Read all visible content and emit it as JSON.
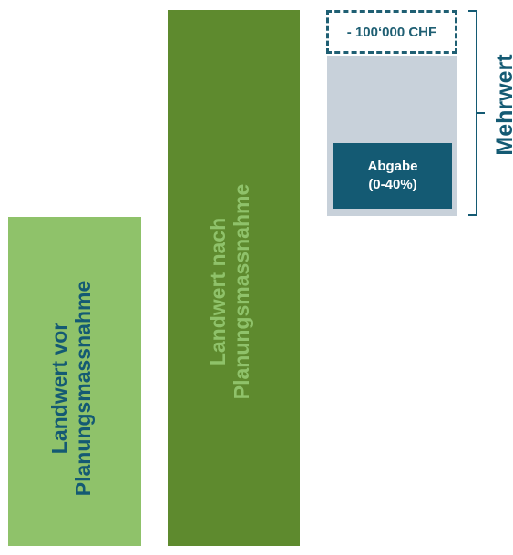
{
  "bars": {
    "before": {
      "line1": "Landwert vor",
      "line2": "Planungsmassnahme"
    },
    "after": {
      "line1": "Landwert nach",
      "line2": "Planungsmassnahme"
    }
  },
  "deduction": {
    "label": "- 100‘000 CHF"
  },
  "levy": {
    "line1": "Abgabe",
    "line2": "(0-40%)"
  },
  "gain": {
    "label": "Mehrwert"
  },
  "colors": {
    "light_green": "#8fc26a",
    "dark_green": "#5e8a2e",
    "teal": "#145a73",
    "gray": "#c8d1da"
  }
}
